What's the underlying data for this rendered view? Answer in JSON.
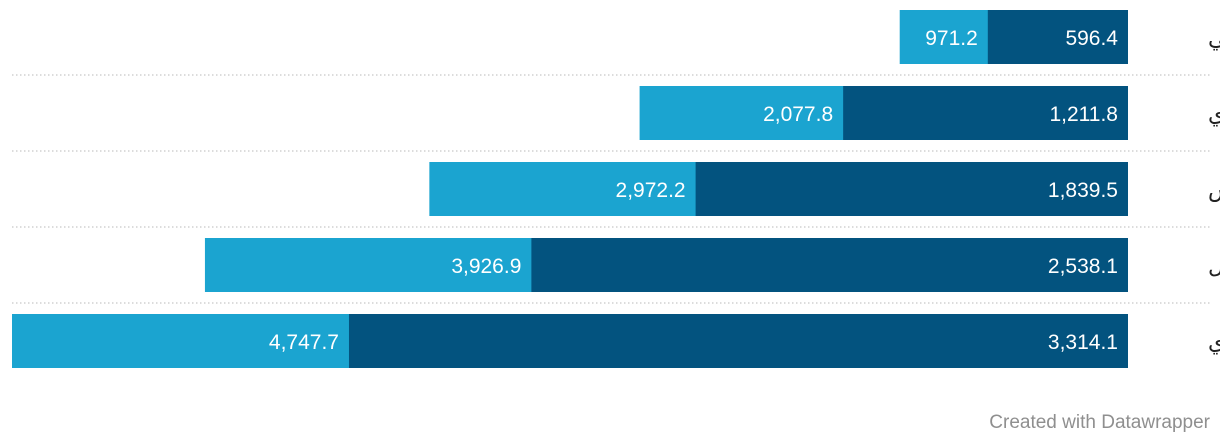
{
  "chart_data": {
    "type": "bar",
    "orientation": "horizontal",
    "stacking": "overlay",
    "direction": "rtl",
    "categories": [
      "جانفي",
      "فيفري",
      "مارس",
      "أفريل",
      "ماي"
    ],
    "series": [
      {
        "values": [
          971.2,
          2077.8,
          2972.2,
          3926.9,
          4747.7
        ],
        "color": "#1ba4d0"
      },
      {
        "values": [
          596.4,
          1211.8,
          1839.5,
          2538.1,
          3314.1
        ],
        "color": "#03537f"
      }
    ],
    "value_labels": {
      "outer": [
        "971.2",
        "2,077.8",
        "2,972.2",
        "3,926.9",
        "4,747.7"
      ],
      "inner": [
        "596.4",
        "1,211.8",
        "1,839.5",
        "2,538.1",
        "3,314.1"
      ]
    },
    "xlim": [
      0,
      4747.7
    ],
    "grid": "dotted row separators"
  },
  "footer": {
    "credit": "Created with Datawrapper"
  }
}
